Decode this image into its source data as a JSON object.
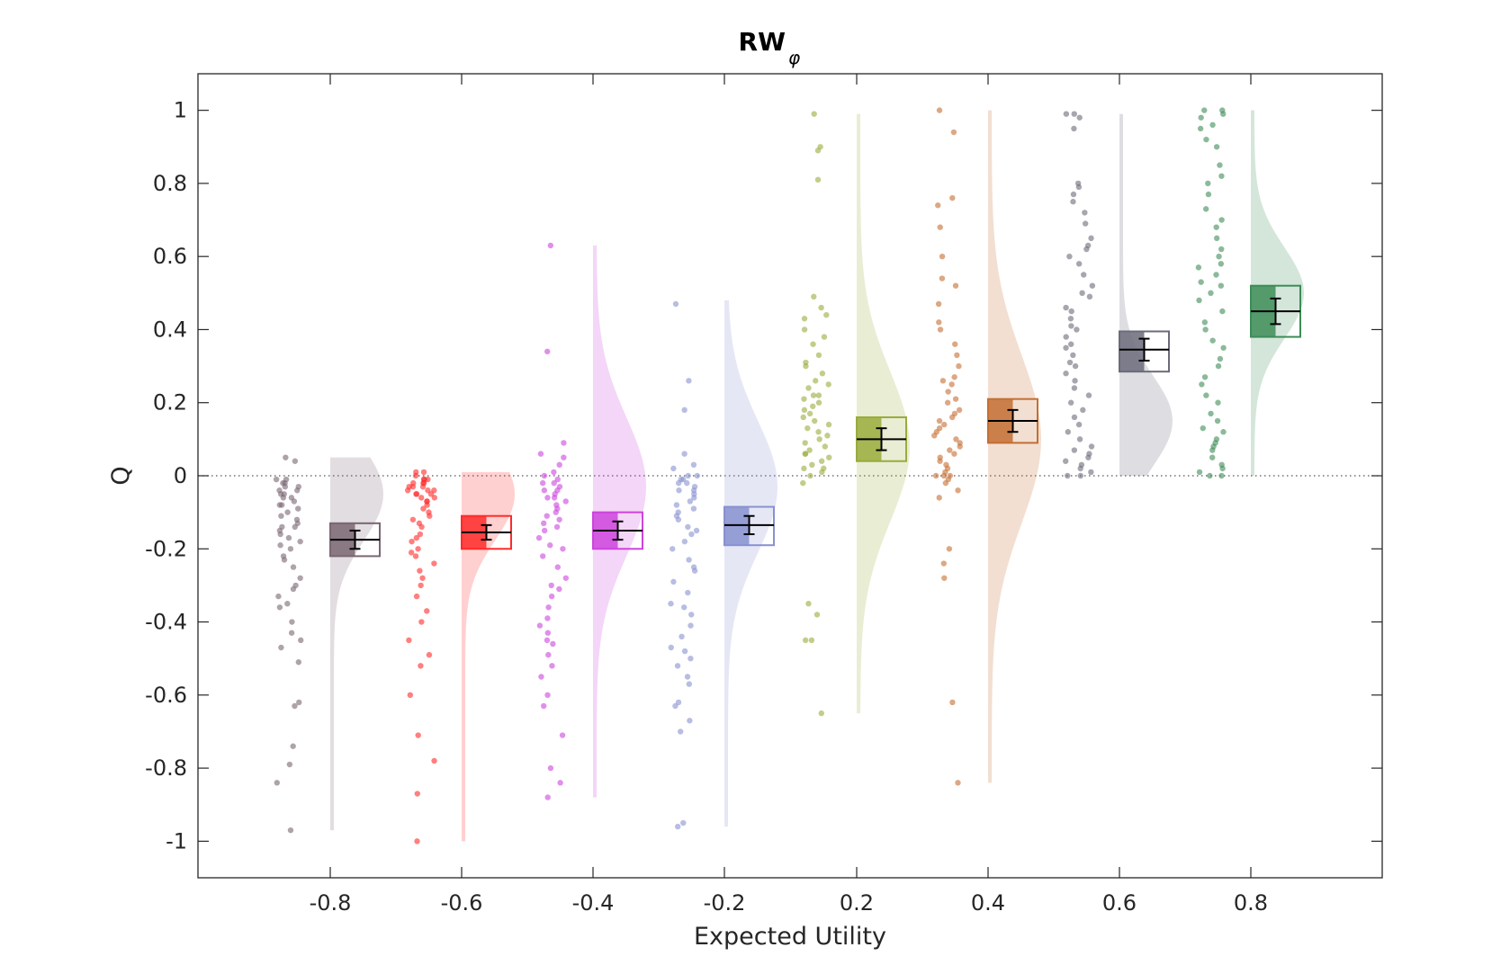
{
  "chart_data": {
    "type": "raincloud",
    "title": "RW",
    "title_subscript": "φ",
    "xlabel": "Expected Utility",
    "ylabel": "Q",
    "ylim": [
      -1.1,
      1.1
    ],
    "x_tick_labels": [
      "-0.8",
      "-0.6",
      "-0.4",
      "-0.2",
      "0.2",
      "0.4",
      "0.6",
      "0.8"
    ],
    "y_ticks": [
      -1,
      -0.8,
      -0.6,
      -0.4,
      -0.2,
      0,
      0.2,
      0.4,
      0.6,
      0.8,
      1
    ],
    "y_tick_labels": [
      "-1",
      "-0.8",
      "-0.6",
      "-0.4",
      "-0.2",
      "0",
      "0.2",
      "0.4",
      "0.6",
      "0.8",
      "1"
    ],
    "reference_line": {
      "y": 0,
      "style": "dotted"
    },
    "grid": false,
    "groups": [
      {
        "expected_utility": "-0.8",
        "color": "#7a6672",
        "mean": -0.175,
        "sem": 0.025,
        "box": [
          -0.22,
          -0.13
        ],
        "density_range": [
          -0.97,
          0.05
        ],
        "density_peak": -0.05,
        "points": [
          0.05,
          0.04,
          -0.01,
          -0.01,
          -0.02,
          -0.03,
          -0.03,
          -0.04,
          -0.05,
          -0.05,
          -0.06,
          -0.07,
          -0.08,
          -0.09,
          -0.1,
          -0.12,
          -0.13,
          -0.14,
          -0.15,
          -0.16,
          -0.18,
          -0.2,
          -0.22,
          -0.25,
          -0.3,
          -0.31,
          -0.33,
          -0.36,
          -0.4,
          -0.43,
          -0.47,
          -0.51,
          -0.62,
          -0.63,
          -0.74,
          -0.79,
          -0.84,
          -0.97,
          -0.02,
          -0.04,
          -0.06,
          -0.08,
          -0.11,
          -0.14,
          -0.17,
          -0.19,
          -0.23,
          -0.28,
          -0.35,
          -0.45
        ]
      },
      {
        "expected_utility": "-0.6",
        "color": "#ff2a2a",
        "mean": -0.155,
        "sem": 0.02,
        "box": [
          -0.2,
          -0.11
        ],
        "density_range": [
          -1.0,
          0.01
        ],
        "density_peak": -0.05,
        "points": [
          0.01,
          0.01,
          0.0,
          -0.01,
          -0.01,
          -0.02,
          -0.02,
          -0.03,
          -0.03,
          -0.04,
          -0.04,
          -0.05,
          -0.05,
          -0.06,
          -0.07,
          -0.08,
          -0.09,
          -0.1,
          -0.12,
          -0.14,
          -0.16,
          -0.18,
          -0.2,
          -0.22,
          -0.24,
          -0.26,
          -0.28,
          -0.3,
          -0.33,
          -0.37,
          -0.4,
          -0.45,
          -0.49,
          -0.52,
          -0.6,
          -0.71,
          -0.78,
          -0.87,
          -1.0,
          -0.01,
          -0.03,
          -0.05,
          -0.07,
          -0.02,
          -0.04,
          -0.06,
          -0.11,
          -0.13,
          -0.17,
          -0.21
        ]
      },
      {
        "expected_utility": "-0.4",
        "color": "#cc44dd",
        "mean": -0.15,
        "sem": 0.025,
        "box": [
          -0.2,
          -0.1
        ],
        "density_range": [
          -0.88,
          0.63
        ],
        "density_peak": -0.03,
        "points": [
          0.63,
          0.34,
          0.09,
          0.06,
          0.05,
          0.03,
          0.01,
          0.0,
          -0.01,
          -0.02,
          -0.03,
          -0.04,
          -0.05,
          -0.06,
          -0.07,
          -0.09,
          -0.11,
          -0.13,
          -0.15,
          -0.17,
          -0.19,
          -0.22,
          -0.25,
          -0.28,
          -0.31,
          -0.33,
          -0.36,
          -0.39,
          -0.43,
          -0.46,
          -0.49,
          -0.55,
          -0.6,
          -0.71,
          -0.8,
          -0.84,
          -0.88,
          -0.02,
          -0.04,
          -0.06,
          -0.08,
          -0.1,
          -0.12,
          -0.14,
          -0.2,
          -0.3,
          -0.41,
          -0.45,
          -0.52,
          -0.63
        ]
      },
      {
        "expected_utility": "-0.2",
        "color": "#8891d0",
        "mean": -0.135,
        "sem": 0.025,
        "box": [
          -0.19,
          -0.085
        ],
        "density_range": [
          -0.96,
          0.48
        ],
        "density_peak": -0.03,
        "points": [
          0.47,
          0.26,
          0.18,
          0.06,
          0.03,
          0.02,
          0.0,
          0.0,
          -0.01,
          -0.02,
          -0.03,
          -0.04,
          -0.05,
          -0.06,
          -0.08,
          -0.1,
          -0.12,
          -0.14,
          -0.16,
          -0.18,
          -0.2,
          -0.23,
          -0.26,
          -0.29,
          -0.32,
          -0.35,
          -0.38,
          -0.41,
          -0.44,
          -0.47,
          -0.5,
          -0.52,
          -0.57,
          -0.63,
          -0.67,
          -0.95,
          -0.96,
          -0.01,
          -0.02,
          -0.04,
          -0.07,
          -0.09,
          -0.11,
          -0.15,
          -0.25,
          -0.36,
          -0.48,
          -0.55,
          -0.62,
          -0.7
        ]
      },
      {
        "expected_utility": "0.2",
        "color": "#9aab3c",
        "mean": 0.1,
        "sem": 0.03,
        "box": [
          0.04,
          0.16
        ],
        "density_range": [
          -0.65,
          0.99
        ],
        "density_peak": 0.08,
        "points": [
          0.99,
          0.9,
          0.89,
          0.81,
          0.49,
          0.46,
          0.43,
          0.4,
          0.36,
          0.33,
          0.3,
          0.28,
          0.25,
          0.22,
          0.2,
          0.18,
          0.16,
          0.14,
          0.12,
          0.1,
          0.08,
          0.06,
          0.04,
          0.02,
          0.0,
          -0.02,
          -0.35,
          -0.38,
          -0.45,
          -0.45,
          -0.65,
          0.24,
          0.22,
          0.19,
          0.15,
          0.11,
          0.09,
          0.07,
          0.05,
          0.03,
          0.01,
          0.13,
          0.17,
          0.21,
          0.26,
          0.31,
          0.38,
          0.44,
          0.02,
          0.06
        ]
      },
      {
        "expected_utility": "0.4",
        "color": "#c46e32",
        "mean": 0.15,
        "sem": 0.03,
        "box": [
          0.09,
          0.21
        ],
        "density_range": [
          -0.84,
          1.0
        ],
        "density_peak": 0.1,
        "points": [
          1.0,
          0.94,
          0.76,
          0.74,
          0.68,
          0.6,
          0.54,
          0.52,
          0.47,
          0.42,
          0.4,
          0.36,
          0.33,
          0.3,
          0.27,
          0.25,
          0.23,
          0.2,
          0.18,
          0.16,
          0.14,
          0.12,
          0.1,
          0.08,
          0.06,
          0.04,
          0.02,
          0.0,
          -0.02,
          -0.04,
          -0.06,
          -0.2,
          -0.24,
          -0.28,
          -0.62,
          -0.84,
          0.01,
          0.03,
          0.05,
          0.07,
          0.09,
          0.11,
          0.13,
          0.15,
          0.17,
          0.21,
          0.26,
          0.0,
          0.0,
          -0.01
        ]
      },
      {
        "expected_utility": "0.6",
        "color": "#6b6b7a",
        "mean": 0.345,
        "sem": 0.03,
        "box": [
          0.285,
          0.395
        ],
        "density_range": [
          0.0,
          0.99
        ],
        "density_peak": 0.15,
        "points": [
          0.99,
          0.99,
          0.98,
          0.95,
          0.8,
          0.79,
          0.77,
          0.75,
          0.72,
          0.69,
          0.65,
          0.63,
          0.6,
          0.58,
          0.55,
          0.52,
          0.49,
          0.46,
          0.43,
          0.4,
          0.38,
          0.36,
          0.33,
          0.31,
          0.28,
          0.26,
          0.24,
          0.22,
          0.2,
          0.18,
          0.16,
          0.14,
          0.12,
          0.1,
          0.08,
          0.07,
          0.06,
          0.05,
          0.04,
          0.03,
          0.02,
          0.01,
          0.0,
          0.0,
          0.3,
          0.35,
          0.41,
          0.45,
          0.5,
          0.62
        ]
      },
      {
        "expected_utility": "0.8",
        "color": "#3d8c57",
        "mean": 0.45,
        "sem": 0.035,
        "box": [
          0.38,
          0.52
        ],
        "density_range": [
          0.0,
          1.0
        ],
        "density_peak": 0.5,
        "points": [
          1.0,
          1.0,
          0.99,
          0.98,
          0.96,
          0.95,
          0.92,
          0.9,
          0.85,
          0.82,
          0.8,
          0.77,
          0.73,
          0.7,
          0.68,
          0.65,
          0.62,
          0.6,
          0.58,
          0.55,
          0.53,
          0.52,
          0.5,
          0.48,
          0.45,
          0.42,
          0.4,
          0.37,
          0.35,
          0.32,
          0.3,
          0.27,
          0.25,
          0.22,
          0.2,
          0.17,
          0.15,
          0.13,
          0.12,
          0.1,
          0.09,
          0.08,
          0.07,
          0.05,
          0.03,
          0.02,
          0.01,
          0.0,
          0.0,
          0.57
        ]
      }
    ]
  }
}
